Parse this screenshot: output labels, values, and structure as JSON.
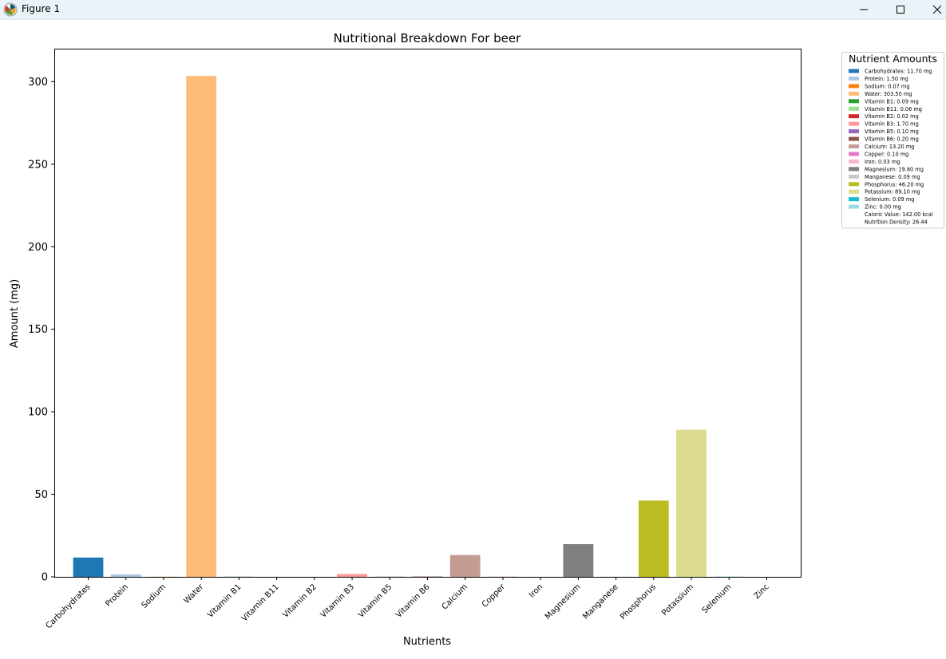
{
  "window": {
    "title": "Figure 1",
    "icon": "matplotlib-figure-icon",
    "controls": [
      "minimize-icon",
      "maximize-icon",
      "close-icon"
    ]
  },
  "chart_data": {
    "type": "bar",
    "title": "Nutritional Breakdown For beer",
    "xlabel": "Nutrients",
    "ylabel": "Amount (mg)",
    "ylim": [
      0,
      320
    ],
    "yticks": [
      0,
      50,
      100,
      150,
      200,
      250,
      300
    ],
    "grid": false,
    "categories": [
      "Carbohydrates",
      "Protein",
      "Sodium",
      "Water",
      "Vitamin B1",
      "Vitamin B11",
      "Vitamin B2",
      "Vitamin B3",
      "Vitamin B5",
      "Vitamin B6",
      "Calcium",
      "Copper",
      "Iron",
      "Magnesium",
      "Manganese",
      "Phosphorus",
      "Potassium",
      "Selenium",
      "Zinc"
    ],
    "values": [
      11.7,
      1.5,
      0.07,
      303.5,
      0.09,
      0.06,
      0.02,
      1.7,
      0.1,
      0.2,
      13.2,
      0.1,
      0.03,
      19.8,
      0.09,
      46.2,
      89.1,
      0.09,
      0.0
    ],
    "colors": [
      "#1f77b4",
      "#aec7e8",
      "#ff7f0e",
      "#ffbb78",
      "#2ca02c",
      "#98df8a",
      "#d62728",
      "#ff9896",
      "#9467bd",
      "#8c564b",
      "#c49c94",
      "#e377c2",
      "#f7b6d2",
      "#7f7f7f",
      "#c7c7c7",
      "#bcbd22",
      "#dbdb8d",
      "#17becf",
      "#9edae5"
    ],
    "legend": {
      "title": "Nutrient Amounts",
      "placement": "outside-top-right",
      "entries": [
        "Carbohydrates: 11.70 mg",
        "Protein: 1.50 mg",
        "Sodium: 0.07 mg",
        "Water: 303.50 mg",
        "Vitamin B1: 0.09 mg",
        "Vitamin B11: 0.06 mg",
        "Vitamin B2: 0.02 mg",
        "Vitamin B3: 1.70 mg",
        "Vitamin B5: 0.10 mg",
        "Vitamin B6: 0.20 mg",
        "Calcium: 13.20 mg",
        "Copper: 0.10 mg",
        "Iron: 0.03 mg",
        "Magnesium: 19.80 mg",
        "Manganese: 0.09 mg",
        "Phosphorus: 46.20 mg",
        "Potassium: 89.10 mg",
        "Selenium: 0.09 mg",
        "Zinc: 0.00 mg"
      ],
      "extra_entries": [
        "Caloric Value: 142.00 kcal",
        "Nutrition Density: 26.44"
      ]
    }
  }
}
